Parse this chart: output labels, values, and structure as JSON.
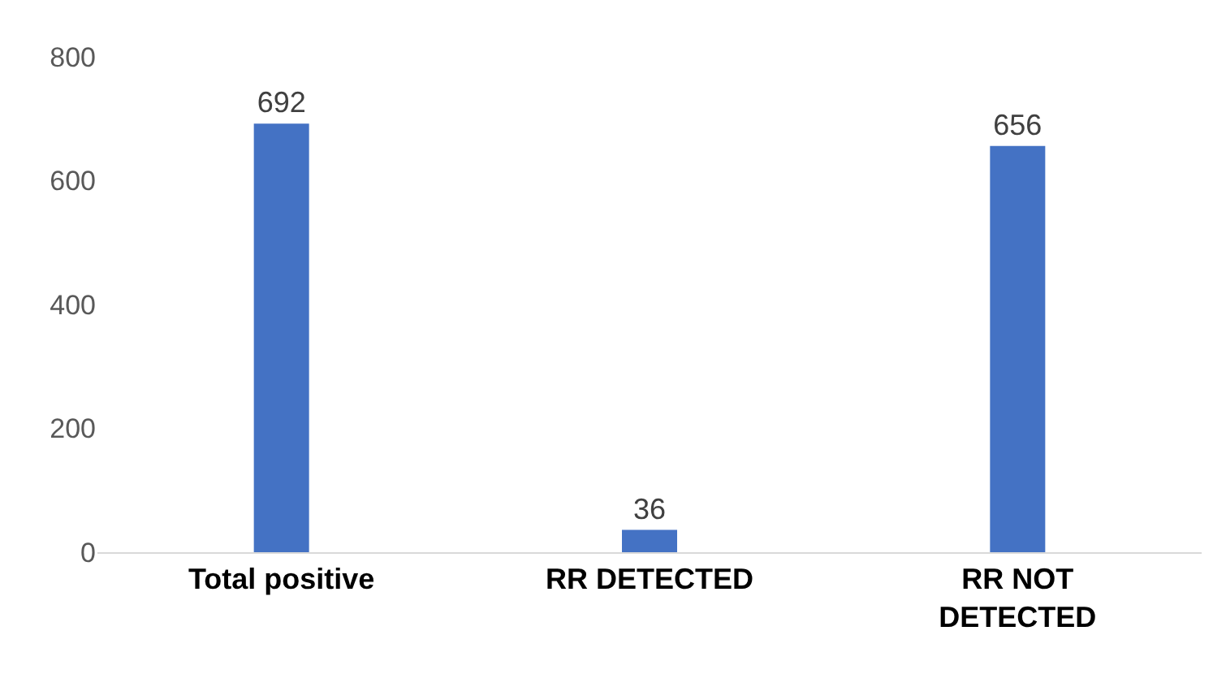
{
  "chart_data": {
    "type": "bar",
    "categories": [
      "Total positive",
      "RR DETECTED",
      "RR NOT DETECTED"
    ],
    "values": [
      692,
      36,
      656
    ],
    "color": "#4472c4",
    "data_labels": true,
    "ylim": [
      0,
      800
    ],
    "yticks": [
      0,
      200,
      400,
      600,
      800
    ],
    "grid": false
  }
}
